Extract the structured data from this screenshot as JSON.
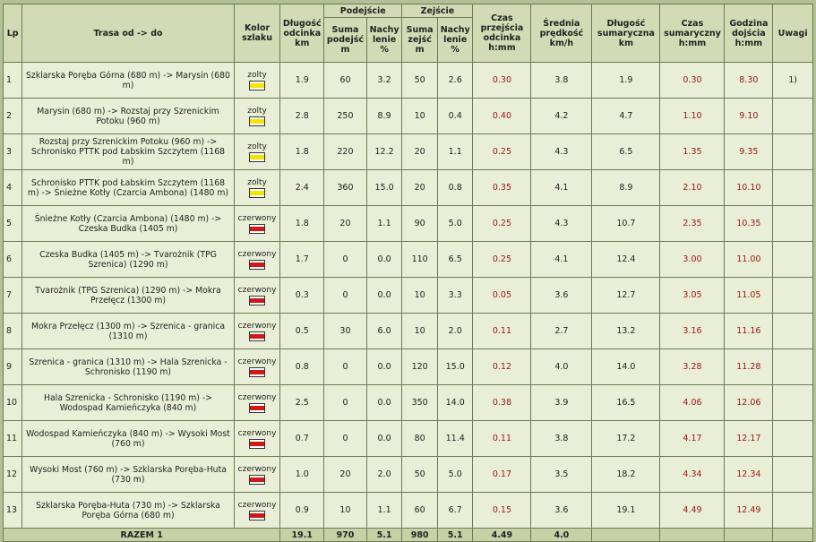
{
  "headers": {
    "lp": "Lp",
    "trasa": "Trasa od -> do",
    "kolor": "Kolor szlaku",
    "dlugosc": "Długość odcinka km",
    "podejscie": "Podejście",
    "suma_podejsc": "Suma podejść m",
    "nachylenie_pod": "Nachy lenie %",
    "zejscie": "Zejście",
    "suma_zejsc": "Suma zejść m",
    "nachylenie_zej": "Nachy lenie %",
    "czas": "Czas przejścia odcinka h:mm",
    "predkosc": "Średnia prędkość km/h",
    "dlugosc_sum": "Długość sumaryczna km",
    "czas_sum": "Czas sumaryczny h:mm",
    "godzina": "Godzina dojścia h:mm",
    "uwagi": "Uwagi"
  },
  "colors": {
    "zolty": "#f2e600",
    "czerwony": "#d01818",
    "time_text": "#a01818"
  },
  "rows": [
    {
      "lp": "1",
      "trasa": "Szklarska Poręba Górna (680 m) -> Marysin (680 m)",
      "kolor": "zolty",
      "kolor_label": "zolty",
      "dlugosc": "1.9",
      "suma_pod": "60",
      "nach_pod": "3.2",
      "suma_zej": "50",
      "nach_zej": "2.6",
      "czas": "0.30",
      "predkosc": "3.8",
      "dlugosc_sum": "1.9",
      "czas_sum": "0.30",
      "godzina": "8.30",
      "uwagi": "1)"
    },
    {
      "lp": "2",
      "trasa": "Marysin (680 m) -> Rozstaj przy Szrenickim Potoku (960 m)",
      "kolor": "zolty",
      "kolor_label": "zolty",
      "dlugosc": "2.8",
      "suma_pod": "250",
      "nach_pod": "8.9",
      "suma_zej": "10",
      "nach_zej": "0.4",
      "czas": "0.40",
      "predkosc": "4.2",
      "dlugosc_sum": "4.7",
      "czas_sum": "1.10",
      "godzina": "9.10",
      "uwagi": ""
    },
    {
      "lp": "3",
      "trasa": "Rozstaj przy Szrenickim Potoku (960 m) -> Schronisko PTTK pod Łabskim Szczytem (1168 m)",
      "kolor": "zolty",
      "kolor_label": "zolty",
      "dlugosc": "1.8",
      "suma_pod": "220",
      "nach_pod": "12.2",
      "suma_zej": "20",
      "nach_zej": "1.1",
      "czas": "0.25",
      "predkosc": "4.3",
      "dlugosc_sum": "6.5",
      "czas_sum": "1.35",
      "godzina": "9.35",
      "uwagi": ""
    },
    {
      "lp": "4",
      "trasa": "Schronisko PTTK pod Łabskim Szczytem (1168 m) -> Śnieżne Kotły (Czarcia Ambona) (1480 m)",
      "kolor": "zolty",
      "kolor_label": "zolty",
      "dlugosc": "2.4",
      "suma_pod": "360",
      "nach_pod": "15.0",
      "suma_zej": "20",
      "nach_zej": "0.8",
      "czas": "0.35",
      "predkosc": "4.1",
      "dlugosc_sum": "8.9",
      "czas_sum": "2.10",
      "godzina": "10.10",
      "uwagi": ""
    },
    {
      "lp": "5",
      "trasa": "Śnieżne Kotły (Czarcia Ambona) (1480 m) -> Czeska Budka (1405 m)",
      "kolor": "czerwony",
      "kolor_label": "czerwony",
      "dlugosc": "1.8",
      "suma_pod": "20",
      "nach_pod": "1.1",
      "suma_zej": "90",
      "nach_zej": "5.0",
      "czas": "0.25",
      "predkosc": "4.3",
      "dlugosc_sum": "10.7",
      "czas_sum": "2.35",
      "godzina": "10.35",
      "uwagi": ""
    },
    {
      "lp": "6",
      "trasa": "Czeska Budka (1405 m) -> Tvarożnik (TPG Szrenica) (1290 m)",
      "kolor": "czerwony",
      "kolor_label": "czerwony",
      "dlugosc": "1.7",
      "suma_pod": "0",
      "nach_pod": "0.0",
      "suma_zej": "110",
      "nach_zej": "6.5",
      "czas": "0.25",
      "predkosc": "4.1",
      "dlugosc_sum": "12.4",
      "czas_sum": "3.00",
      "godzina": "11.00",
      "uwagi": ""
    },
    {
      "lp": "7",
      "trasa": "Tvarożnik (TPG Szrenica) (1290 m) -> Mokra Przełęcz (1300 m)",
      "kolor": "czerwony",
      "kolor_label": "czerwony",
      "dlugosc": "0.3",
      "suma_pod": "0",
      "nach_pod": "0.0",
      "suma_zej": "10",
      "nach_zej": "3.3",
      "czas": "0.05",
      "predkosc": "3.6",
      "dlugosc_sum": "12.7",
      "czas_sum": "3.05",
      "godzina": "11.05",
      "uwagi": ""
    },
    {
      "lp": "8",
      "trasa": "Mokra Przełęcz (1300 m) -> Szrenica - granica (1310 m)",
      "kolor": "czerwony",
      "kolor_label": "czerwony",
      "dlugosc": "0.5",
      "suma_pod": "30",
      "nach_pod": "6.0",
      "suma_zej": "10",
      "nach_zej": "2.0",
      "czas": "0.11",
      "predkosc": "2.7",
      "dlugosc_sum": "13.2",
      "czas_sum": "3.16",
      "godzina": "11.16",
      "uwagi": ""
    },
    {
      "lp": "9",
      "trasa": "Szrenica - granica (1310 m) -> Hala Szrenicka - Schronisko (1190 m)",
      "kolor": "czerwony",
      "kolor_label": "czerwony",
      "dlugosc": "0.8",
      "suma_pod": "0",
      "nach_pod": "0.0",
      "suma_zej": "120",
      "nach_zej": "15.0",
      "czas": "0.12",
      "predkosc": "4.0",
      "dlugosc_sum": "14.0",
      "czas_sum": "3.28",
      "godzina": "11.28",
      "uwagi": ""
    },
    {
      "lp": "10",
      "trasa": "Hala Szrenicka - Schronisko (1190 m) -> Wodospad Kamieńczyka (840 m)",
      "kolor": "czerwony",
      "kolor_label": "czerwony",
      "dlugosc": "2.5",
      "suma_pod": "0",
      "nach_pod": "0.0",
      "suma_zej": "350",
      "nach_zej": "14.0",
      "czas": "0.38",
      "predkosc": "3.9",
      "dlugosc_sum": "16.5",
      "czas_sum": "4.06",
      "godzina": "12.06",
      "uwagi": ""
    },
    {
      "lp": "11",
      "trasa": "Wodospad Kamieńczyka (840 m) -> Wysoki Most (760 m)",
      "kolor": "czerwony",
      "kolor_label": "czerwony",
      "dlugosc": "0.7",
      "suma_pod": "0",
      "nach_pod": "0.0",
      "suma_zej": "80",
      "nach_zej": "11.4",
      "czas": "0.11",
      "predkosc": "3.8",
      "dlugosc_sum": "17.2",
      "czas_sum": "4.17",
      "godzina": "12.17",
      "uwagi": ""
    },
    {
      "lp": "12",
      "trasa": "Wysoki Most (760 m) -> Szklarska Poręba-Huta (730 m)",
      "kolor": "czerwony",
      "kolor_label": "czerwony",
      "dlugosc": "1.0",
      "suma_pod": "20",
      "nach_pod": "2.0",
      "suma_zej": "50",
      "nach_zej": "5.0",
      "czas": "0.17",
      "predkosc": "3.5",
      "dlugosc_sum": "18.2",
      "czas_sum": "4.34",
      "godzina": "12.34",
      "uwagi": ""
    },
    {
      "lp": "13",
      "trasa": "Szklarska Poręba-Huta (730 m) -> Szklarska Poręba Górna (680 m)",
      "kolor": "czerwony",
      "kolor_label": "czerwony",
      "dlugosc": "0.9",
      "suma_pod": "10",
      "nach_pod": "1.1",
      "suma_zej": "60",
      "nach_zej": "6.7",
      "czas": "0.15",
      "predkosc": "3.6",
      "dlugosc_sum": "19.1",
      "czas_sum": "4.49",
      "godzina": "12.49",
      "uwagi": ""
    }
  ],
  "totals": {
    "label": "RAZEM 1",
    "dlugosc": "19.1",
    "suma_pod": "970",
    "nach_pod": "5.1",
    "suma_zej": "980",
    "nach_zej": "5.1",
    "czas": "4.49",
    "predkosc": "4.0"
  }
}
